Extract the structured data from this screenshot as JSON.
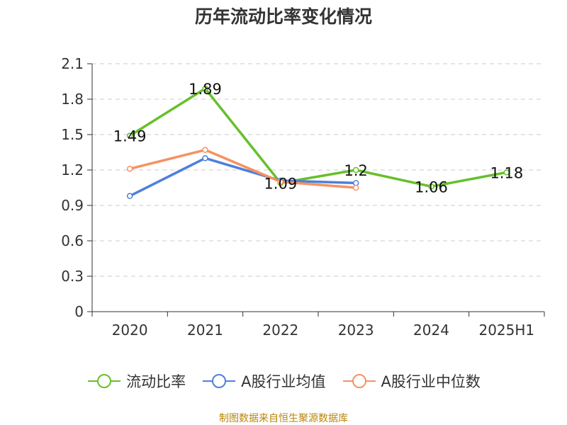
{
  "chart_data": {
    "type": "line",
    "title": "历年流动比率变化情况",
    "categories": [
      "2020",
      "2021",
      "2022",
      "2023",
      "2024",
      "2025H1"
    ],
    "ylim": [
      0,
      2.1
    ],
    "yticks": [
      "0",
      "0.3",
      "0.6",
      "0.9",
      "1.2",
      "1.5",
      "1.8",
      "2.1"
    ],
    "grid": true,
    "legend_position": "bottom",
    "series": [
      {
        "name": "流动比率",
        "color": "#66c02a",
        "values": [
          1.49,
          1.89,
          1.09,
          1.2,
          1.06,
          1.18
        ],
        "labels": [
          "1.49",
          "1.89",
          "1.09",
          "1.2",
          "1.06",
          "1.18"
        ]
      },
      {
        "name": "A股行业均值",
        "color": "#4e7fdd",
        "values": [
          0.98,
          1.3,
          1.11,
          1.09,
          null,
          null
        ]
      },
      {
        "name": "A股行业中位数",
        "color": "#f59262",
        "values": [
          1.21,
          1.37,
          1.1,
          1.05,
          null,
          null
        ]
      }
    ]
  },
  "source_note": "制图数据来自恒生聚源数据库"
}
